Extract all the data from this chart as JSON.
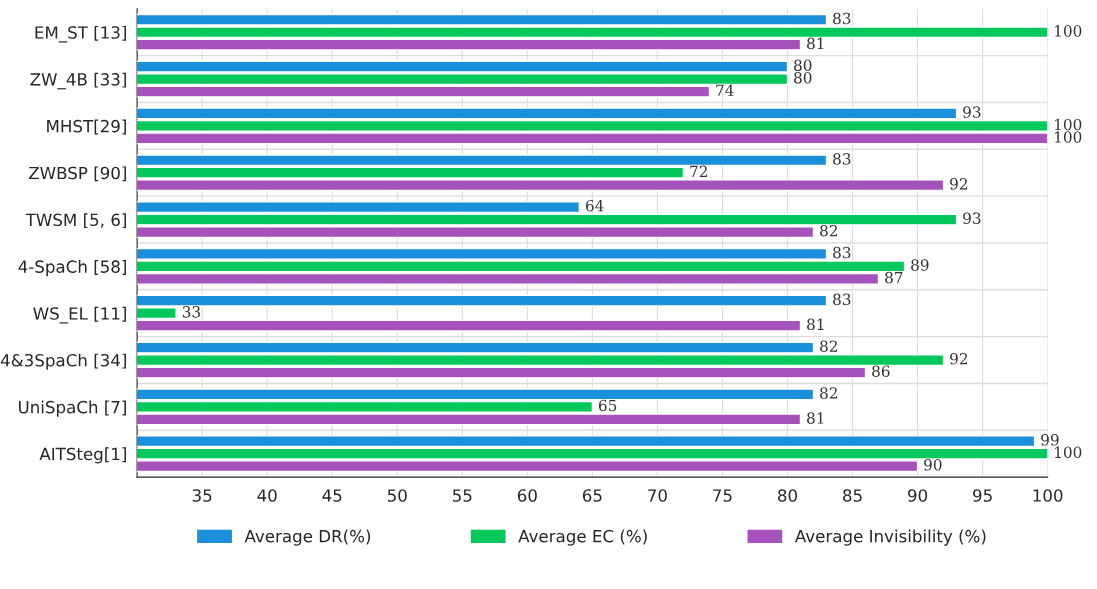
{
  "chart_data": {
    "type": "bar",
    "orientation": "horizontal",
    "categories": [
      "EM_ST [13]",
      "ZW_4B [33]",
      "MHST[29]",
      "ZWBSP [90]",
      "TWSM [5, 6]",
      "4-SpaCh [58]",
      "WS_EL [11]",
      "4&3SpaCh [34]",
      "UniSpaCh [7]",
      "AITSteg[1]"
    ],
    "series": [
      {
        "name": "Average DR(%)",
        "color": "#1a8fdc",
        "values": [
          83,
          80,
          93,
          83,
          64,
          83,
          83,
          82,
          82,
          99
        ]
      },
      {
        "name": "Average EC (%)",
        "color": "#00c85a",
        "values": [
          100,
          80,
          100,
          72,
          93,
          89,
          33,
          92,
          65,
          100
        ]
      },
      {
        "name": "Average Invisibility (%)",
        "color": "#a652bd",
        "values": [
          81,
          74,
          100,
          92,
          82,
          87,
          81,
          86,
          81,
          90
        ]
      }
    ],
    "xlim": [
      30,
      100
    ],
    "xticks": [
      35,
      40,
      45,
      50,
      55,
      60,
      65,
      70,
      75,
      80,
      85,
      90,
      95,
      100
    ],
    "grid": "x",
    "legend": "bottom",
    "data_labels": true
  }
}
